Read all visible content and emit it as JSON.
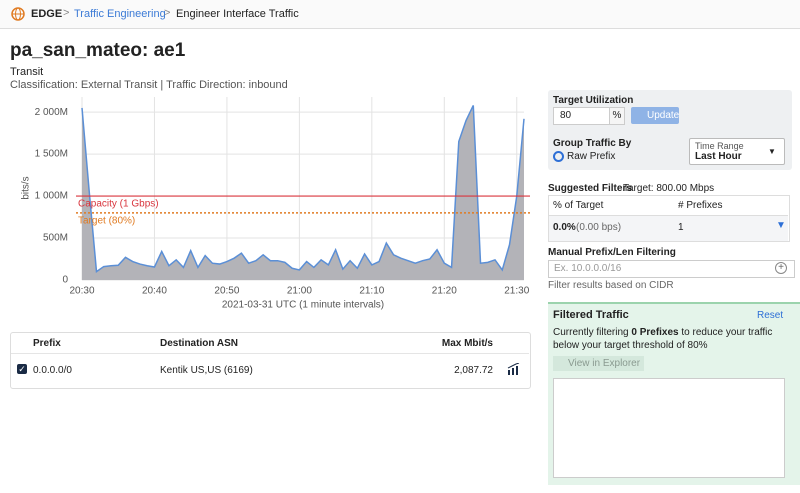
{
  "header": {
    "brand": "EDGE",
    "breadcrumbs": [
      "Traffic Engineering",
      "Engineer Interface Traffic"
    ]
  },
  "title": "pa_san_mateo: ae1",
  "subtitle": "Transit",
  "classification": "Classification: External Transit | Traffic Direction: inbound",
  "chart_data": {
    "type": "area",
    "y_label": "bits/s",
    "x_label": "2021-03-31 UTC (1 minute intervals)",
    "fill": "#b3b3b8",
    "color": "#5b8fd6",
    "grid": true,
    "x": [
      "20:30",
      "20:31",
      "20:32",
      "20:33",
      "20:34",
      "20:35",
      "20:36",
      "20:37",
      "20:38",
      "20:39",
      "20:40",
      "20:41",
      "20:42",
      "20:43",
      "20:44",
      "20:45",
      "20:46",
      "20:47",
      "20:48",
      "20:49",
      "20:50",
      "20:51",
      "20:52",
      "20:53",
      "20:54",
      "20:55",
      "20:56",
      "20:57",
      "20:58",
      "20:59",
      "21:00",
      "21:01",
      "21:02",
      "21:03",
      "21:04",
      "21:05",
      "21:06",
      "21:07",
      "21:08",
      "21:09",
      "21:10",
      "21:11",
      "21:12",
      "21:13",
      "21:14",
      "21:15",
      "21:16",
      "21:17",
      "21:18",
      "21:19",
      "21:20",
      "21:21",
      "21:22",
      "21:23",
      "21:24",
      "21:25",
      "21:26",
      "21:27",
      "21:28",
      "21:29",
      "21:30",
      "21:31"
    ],
    "values": [
      2050000000,
      1050000000,
      100000000,
      160000000,
      170000000,
      175000000,
      270000000,
      220000000,
      190000000,
      170000000,
      155000000,
      340000000,
      170000000,
      240000000,
      150000000,
      350000000,
      150000000,
      290000000,
      200000000,
      190000000,
      220000000,
      260000000,
      320000000,
      200000000,
      230000000,
      300000000,
      230000000,
      230000000,
      210000000,
      140000000,
      120000000,
      220000000,
      150000000,
      240000000,
      180000000,
      360000000,
      130000000,
      230000000,
      140000000,
      310000000,
      180000000,
      220000000,
      440000000,
      300000000,
      260000000,
      230000000,
      200000000,
      230000000,
      250000000,
      360000000,
      200000000,
      150000000,
      1650000000,
      1900000000,
      2080000000,
      200000000,
      210000000,
      240000000,
      120000000,
      420000000,
      1000000000,
      1920000000
    ],
    "ylim": [
      0,
      2180000000
    ],
    "yticks": [
      0,
      {
        "value": 500000000,
        "label": "500M"
      },
      {
        "value": 1000000000,
        "label": "1 000M"
      },
      {
        "value": 1500000000,
        "label": "1 500M"
      },
      {
        "value": 2000000000,
        "label": "2 000M"
      }
    ],
    "xticks": [
      "20:30",
      "20:40",
      "20:50",
      "21:00",
      "21:10",
      "21:20",
      "21:30"
    ],
    "reference_lines": [
      {
        "label": "Capacity (1 Gbps)",
        "value": 1000000000,
        "color": "#d9363e",
        "style": "solid"
      },
      {
        "label": "Target (80%)",
        "value": 800000000,
        "color": "#e07b22",
        "style": "dotted"
      }
    ]
  },
  "table": {
    "headers": [
      "Prefix",
      "Destination ASN",
      "Max Mbit/s"
    ],
    "rows": [
      [
        "0.0.0.0/0",
        "Kentik US,US (6169)",
        "2,087.72"
      ]
    ]
  },
  "panel": {
    "target_label": "Target Utilization",
    "target_value": "80",
    "unit": "%",
    "update": "Update",
    "group_label": "Group Traffic By",
    "group_option": "Raw Prefix",
    "time_label": "Time Range",
    "time_value": "Last Hour",
    "suggested_label": "Suggested Filters",
    "suggested_target": "Target: 800.00 Mbps",
    "suggested_headers": [
      "% of Target",
      "# Prefixes"
    ],
    "suggested_row": [
      "0.0%",
      "(0.00 bps)",
      "1"
    ],
    "manual_label": "Manual Prefix/Len Filtering",
    "manual_placeholder": "Ex. 10.0.0.0/16",
    "manual_help": "Filter results based on CIDR",
    "filtered_title": "Filtered Traffic",
    "reset": "Reset",
    "filtered_text_1": "Currently filtering ",
    "filtered_count": "0 Prefixes",
    "filtered_text_2": " to reduce your traffic below your target threshold of 80%",
    "explorer": "View in Explorer"
  }
}
